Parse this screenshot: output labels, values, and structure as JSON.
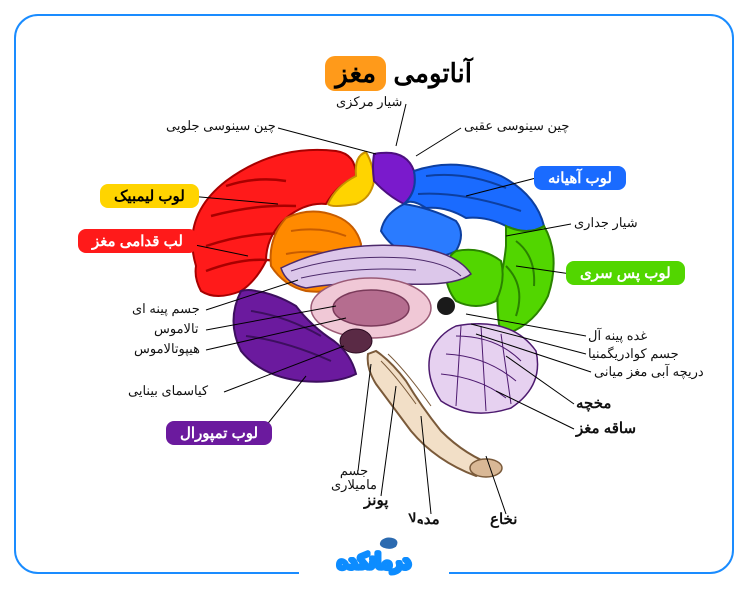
{
  "title_main": "آناتومی",
  "title_chip": "مغز",
  "frame_border": "#1a8cff",
  "frame_radius": 24,
  "title_chip_bg": "#ff9a1a",
  "brain": {
    "lobe_colors": {
      "frontal": "#ff1a1a",
      "limbic": "#ffd400",
      "parietal": "#1a6bff",
      "occipital": "#52d600",
      "temporal": "#6b1a9e",
      "central": "#7a1acc",
      "orange": "#ff8a00",
      "blue_mid": "#2a7bff",
      "green_mid": "#52d600",
      "cerebellum_fill": "#e6d1f0",
      "cerebellum_line": "#4d1a6f",
      "stem": "#f2dfc7",
      "stem_outline": "#7a5a3a",
      "inner": "#f0c8d6",
      "inner2": "#b56d8f",
      "cc_light": "#dcc7ea",
      "cc_dark": "#4d2a6b"
    }
  },
  "tags": {
    "limbic": {
      "text": "لوب لیمبیک",
      "bg": "#ffd400",
      "fg": "#000"
    },
    "frontal": {
      "text": "لب قدامی مغز",
      "bg": "#ff1a1a",
      "fg": "#fff"
    },
    "temporal": {
      "text": "لوب تمپورال",
      "bg": "#6b1a9e",
      "fg": "#fff"
    },
    "parietal": {
      "text": "لوب آهیانه",
      "bg": "#1a6bff",
      "fg": "#fff"
    },
    "occipital": {
      "text": "لوب پس سری",
      "bg": "#52d600",
      "fg": "#fff"
    }
  },
  "labels": {
    "central_sulcus": "شیار مرکزی",
    "anterior_cingulate": "چین سینوسی جلویی",
    "posterior_cingulate": "چین سینوسی عقبی",
    "parietal_sulcus": "شیار جداری",
    "pineal_body": "جسم پینه ای",
    "thalamus": "تالاموس",
    "hypothalamus": "هیپوتالاموس",
    "optic_chiasm": "کیاسمای بینایی",
    "mammillary": "جسم\nمامیلاری",
    "pons": "پونز",
    "medulla": "مدولا",
    "spinal": "نخاع",
    "brainstem": "ساقه مغز",
    "cerebellum": "مخچه",
    "aqueduct": "دریچه آبی مغز میانی",
    "quadrigemina": "جسم کوادریگمنیا",
    "pineal_gland": "غده پینه آل"
  },
  "logo": {
    "text": "درمانکده",
    "color": "#0d8cff",
    "hat": "#2b6ab0"
  }
}
